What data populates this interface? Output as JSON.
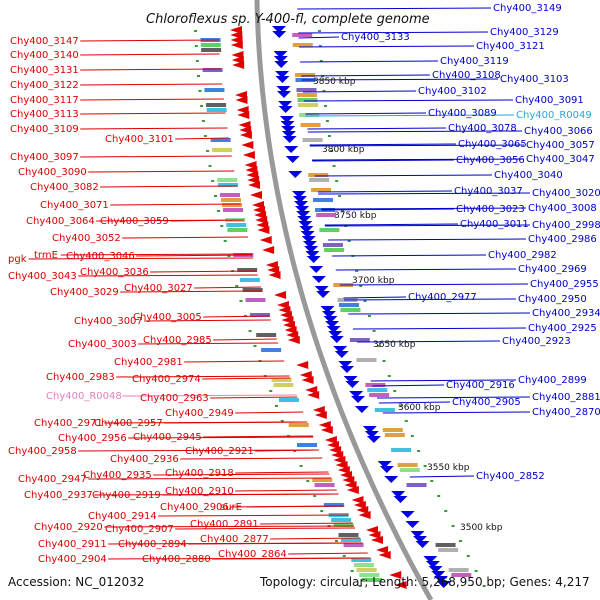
{
  "title": "Chloroflexus sp. Y-400-fl, complete genome",
  "footer": {
    "accession": "Accession: NC_012032",
    "topology": "Topology: circular; Length: 5,268,950 bp; Genes: 4,217"
  },
  "colors": {
    "left_label": "#dd0000",
    "right_label": "#0000cc",
    "rna_left": "#e080c0",
    "rna_right": "#2aa6d6",
    "backbone": "#999999",
    "tick": "#3a9a3a"
  },
  "scale_labels": [
    "3850 kbp",
    "3800 kbp",
    "3750 kbp",
    "3700 kbp",
    "3650 kbp",
    "3600 kbp",
    "3550 kbp",
    "3500 kbp"
  ],
  "left_labels": [
    "Chy400_3147",
    "Chy400_3140",
    "Chy400_3131",
    "Chy400_3122",
    "Chy400_3117",
    "Chy400_3113",
    "Chy400_3109",
    "Chy400_3101",
    "Chy400_3097",
    "Chy400_3090",
    "Chy400_3082",
    "Chy400_3071",
    "Chy400_3064",
    "Chy400_3059",
    "Chy400_3052",
    "trmE",
    "pgk",
    "Chy400_3046",
    "Chy400_3043",
    "Chy400_3036",
    "Chy400_3029",
    "Chy400_3027",
    "Chy400_3007",
    "Chy400_3005",
    "Chy400_3003",
    "Chy400_2985",
    "Chy400_2981",
    "Chy400_2983",
    "Chy400_2974",
    "Chy400_R0048",
    "Chy400_2963",
    "Chy400_2949",
    "Chy400_2971",
    "Chy400_2957",
    "Chy400_2956",
    "Chy400_2945",
    "Chy400_2958",
    "Chy400_2921",
    "Chy400_2936",
    "Chy400_2947",
    "Chy400_2935",
    "Chy400_2918",
    "Chy400_2937",
    "Chy400_2919",
    "Chy400_2910",
    "Chy400_2906",
    "surE",
    "Chy400_2914",
    "Chy400_2920",
    "Chy400_2907",
    "Chy400_2891",
    "Chy400_2911",
    "Chy400_2894",
    "Chy400_2877",
    "Chy400_2904",
    "Chy400_2880",
    "Chy400_2864"
  ],
  "right_labels": [
    "Chy400_3149",
    "Chy400_3133",
    "Chy400_3129",
    "Chy400_3121",
    "Chy400_3119",
    "Chy400_3108",
    "Chy400_3103",
    "Chy400_3102",
    "Chy400_3091",
    "Chy400_3089",
    "Chy400_R0049",
    "Chy400_3078",
    "Chy400_3066",
    "Chy400_3065",
    "Chy400_3057",
    "Chy400_3056",
    "Chy400_3047",
    "Chy400_3040",
    "Chy400_3037",
    "Chy400_3020",
    "Chy400_3023",
    "Chy400_3008",
    "Chy400_3011",
    "Chy400_2998",
    "Chy400_2986",
    "Chy400_2982",
    "Chy400_2969",
    "Chy400_2977",
    "Chy400_2955",
    "Chy400_2950",
    "Chy400_2934",
    "Chy400_2925",
    "Chy400_2923",
    "Chy400_2916",
    "Chy400_2899",
    "Chy400_2905",
    "Chy400_2881",
    "Chy400_2870",
    "Chy400_2852"
  ]
}
